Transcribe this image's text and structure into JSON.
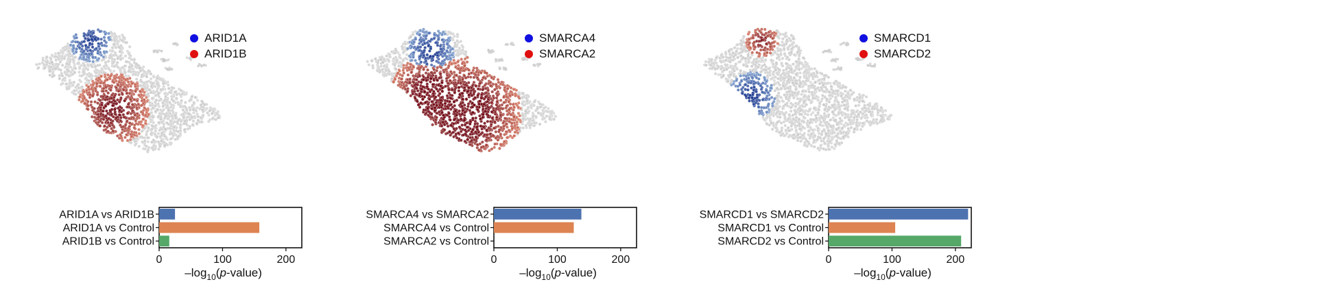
{
  "chart_data": [
    {
      "type": "bar",
      "orientation": "horizontal",
      "panel": "ARID1A / ARID1B",
      "legend": [
        {
          "label": "ARID1A",
          "color": "#1010e0"
        },
        {
          "label": "ARID1B",
          "color": "#e01010"
        }
      ],
      "umap_theme": "red",
      "categories": [
        "ARID1A vs ARID1B",
        "ARID1A vs Control",
        "ARID1B vs Control"
      ],
      "values": [
        25,
        158,
        16
      ],
      "bar_colors": [
        "#4c72b0",
        "#dd8452",
        "#55a868"
      ],
      "xticks": [
        "0",
        "100",
        "200"
      ],
      "xlim": [
        0,
        225
      ],
      "xlabel_prefix": "–log",
      "xlabel_sub": "10",
      "xlabel_open": "(",
      "xlabel_italic": "p",
      "xlabel_suffix": "-value)"
    },
    {
      "type": "bar",
      "orientation": "horizontal",
      "panel": "SMARCA4 / SMARCA2",
      "legend": [
        {
          "label": "SMARCA4",
          "color": "#1010e0"
        },
        {
          "label": "SMARCA2",
          "color": "#e01010"
        }
      ],
      "umap_theme": "red-dominant",
      "categories": [
        "SMARCA4 vs SMARCA2",
        "SMARCA4 vs Control",
        "SMARCA2 vs Control"
      ],
      "values": [
        138,
        126,
        0
      ],
      "bar_colors": [
        "#4c72b0",
        "#dd8452",
        "#55a868"
      ],
      "xticks": [
        "0",
        "100",
        "200"
      ],
      "xlim": [
        0,
        225
      ],
      "xlabel_prefix": "–log",
      "xlabel_sub": "10",
      "xlabel_open": "(",
      "xlabel_italic": "p",
      "xlabel_suffix": "-value)"
    },
    {
      "type": "bar",
      "orientation": "horizontal",
      "panel": "SMARCD1 / SMARCD2",
      "legend": [
        {
          "label": "SMARCD1",
          "color": "#1010e0"
        },
        {
          "label": "SMARCD2",
          "color": "#e01010"
        }
      ],
      "umap_theme": "blue",
      "categories": [
        "SMARCD1 vs SMARCD2",
        "SMARCD1 vs Control",
        "SMARCD2 vs Control"
      ],
      "values": [
        220,
        105,
        209
      ],
      "bar_colors": [
        "#4c72b0",
        "#dd8452",
        "#55a868"
      ],
      "xticks": [
        "0",
        "100",
        "200"
      ],
      "xlim": [
        0,
        225
      ],
      "xlabel_prefix": "–log",
      "xlabel_sub": "10",
      "xlabel_open": "(",
      "xlabel_italic": "p",
      "xlabel_suffix": "-value)"
    }
  ]
}
